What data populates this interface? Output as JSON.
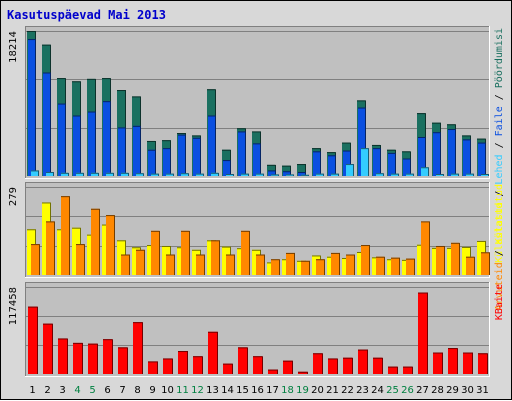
{
  "title": "Kasutuspäevad Mai 2013",
  "colors": {
    "page": "#0066cc",
    "hits": "#1a7060",
    "files": "#0a4fe0",
    "visits": "#ffff00",
    "sites": "#ff8800",
    "kbytes": "#ff0000",
    "pageLight": "#33ccff",
    "weekend": "#008040",
    "panelBg": "#c0c0c0"
  },
  "chart_data": {
    "type": "bar",
    "categories": [
      "1",
      "2",
      "3",
      "4",
      "5",
      "6",
      "7",
      "8",
      "9",
      "10",
      "11",
      "12",
      "13",
      "14",
      "15",
      "16",
      "17",
      "18",
      "19",
      "20",
      "21",
      "22",
      "23",
      "24",
      "25",
      "26",
      "27",
      "28",
      "29",
      "30",
      "31"
    ],
    "weekend_days": [
      "4",
      "5",
      "11",
      "12",
      "18",
      "19",
      "25",
      "26"
    ],
    "panels": [
      {
        "id": "top",
        "tick_label": "18214",
        "ylim": [
          0,
          18214
        ],
        "right_labels": [
          {
            "text": "Külastatud",
            "color": "#ffff00"
          },
          {
            "text": " / ",
            "color": "#000000"
          },
          {
            "text": "Lehed",
            "color": "#33ccff"
          },
          {
            "text": " / ",
            "color": "#000000"
          },
          {
            "text": "Faile",
            "color": "#0a4fe0"
          },
          {
            "text": " / ",
            "color": "#000000"
          },
          {
            "text": "Pöördumisi",
            "color": "#1a7060"
          }
        ],
        "series": [
          {
            "name": "Pöördumisi",
            "values": [
              18214,
              16500,
              12300,
              11900,
              12200,
              12300,
              10800,
              10000,
              4400,
              4500,
              5400,
              5100,
              10900,
              3300,
              6000,
              5600,
              1400,
              1300,
              1500,
              3500,
              3000,
              4200,
              9500,
              3900,
              3300,
              3100,
              7900,
              6700,
              6500,
              5100,
              4700
            ]
          },
          {
            "name": "Faile",
            "values": [
              17200,
              13000,
              9100,
              7600,
              8100,
              9400,
              6100,
              6300,
              3300,
              3500,
              5200,
              4800,
              7600,
              2000,
              5600,
              4100,
              700,
              600,
              500,
              3100,
              2600,
              3200,
              8600,
              3500,
              2900,
              2200,
              4900,
              5500,
              5900,
              4600,
              4200
            ]
          },
          {
            "name": "Lehed",
            "values": [
              700,
              500,
              400,
              400,
              400,
              400,
              400,
              350,
              300,
              300,
              350,
              300,
              400,
              250,
              300,
              300,
              200,
              200,
              150,
              300,
              300,
              1500,
              3500,
              350,
              300,
              300,
              1100,
              250,
              300,
              300,
              250
            ]
          }
        ]
      },
      {
        "id": "middle",
        "tick_label": "279",
        "ylim": [
          0,
          279
        ],
        "right_labels": [
          {
            "text": "Arvuteid",
            "color": "#ff8800"
          },
          {
            "text": " / ",
            "color": "#000000"
          },
          {
            "text": "Külastatud",
            "color": "#ffff00"
          }
        ],
        "series": [
          {
            "name": "Külastatud",
            "values": [
              145,
              230,
              145,
              150,
              128,
              160,
              110,
              88,
              95,
              92,
              88,
              80,
              110,
              90,
              85,
              80,
              40,
              50,
              45,
              62,
              58,
              54,
              73,
              56,
              50,
              48,
              96,
              86,
              86,
              89,
              108
            ]
          },
          {
            "name": "Arvuteid",
            "values": [
              98,
              170,
              250,
              98,
              210,
              190,
              65,
              80,
              140,
              65,
              140,
              65,
              110,
              65,
              140,
              65,
              50,
              70,
              45,
              50,
              70,
              65,
              95,
              58,
              55,
              52,
              170,
              92,
              102,
              58,
              72
            ]
          }
        ]
      },
      {
        "id": "bottom",
        "tick_label": "117458",
        "ylim": [
          0,
          117458
        ],
        "right_labels": [
          {
            "text": "KBaite",
            "color": "#ff0000"
          }
        ],
        "series": [
          {
            "name": "KBaite",
            "values": [
              91000,
              68000,
              48000,
              42000,
              41000,
              47000,
              36000,
              70000,
              17000,
              21000,
              31000,
              24000,
              57000,
              14000,
              36000,
              24000,
              6000,
              18000,
              3000,
              28000,
              21000,
              22000,
              33000,
              22000,
              10000,
              10000,
              110000,
              29000,
              35000,
              29000,
              28000
            ]
          }
        ]
      }
    ]
  }
}
